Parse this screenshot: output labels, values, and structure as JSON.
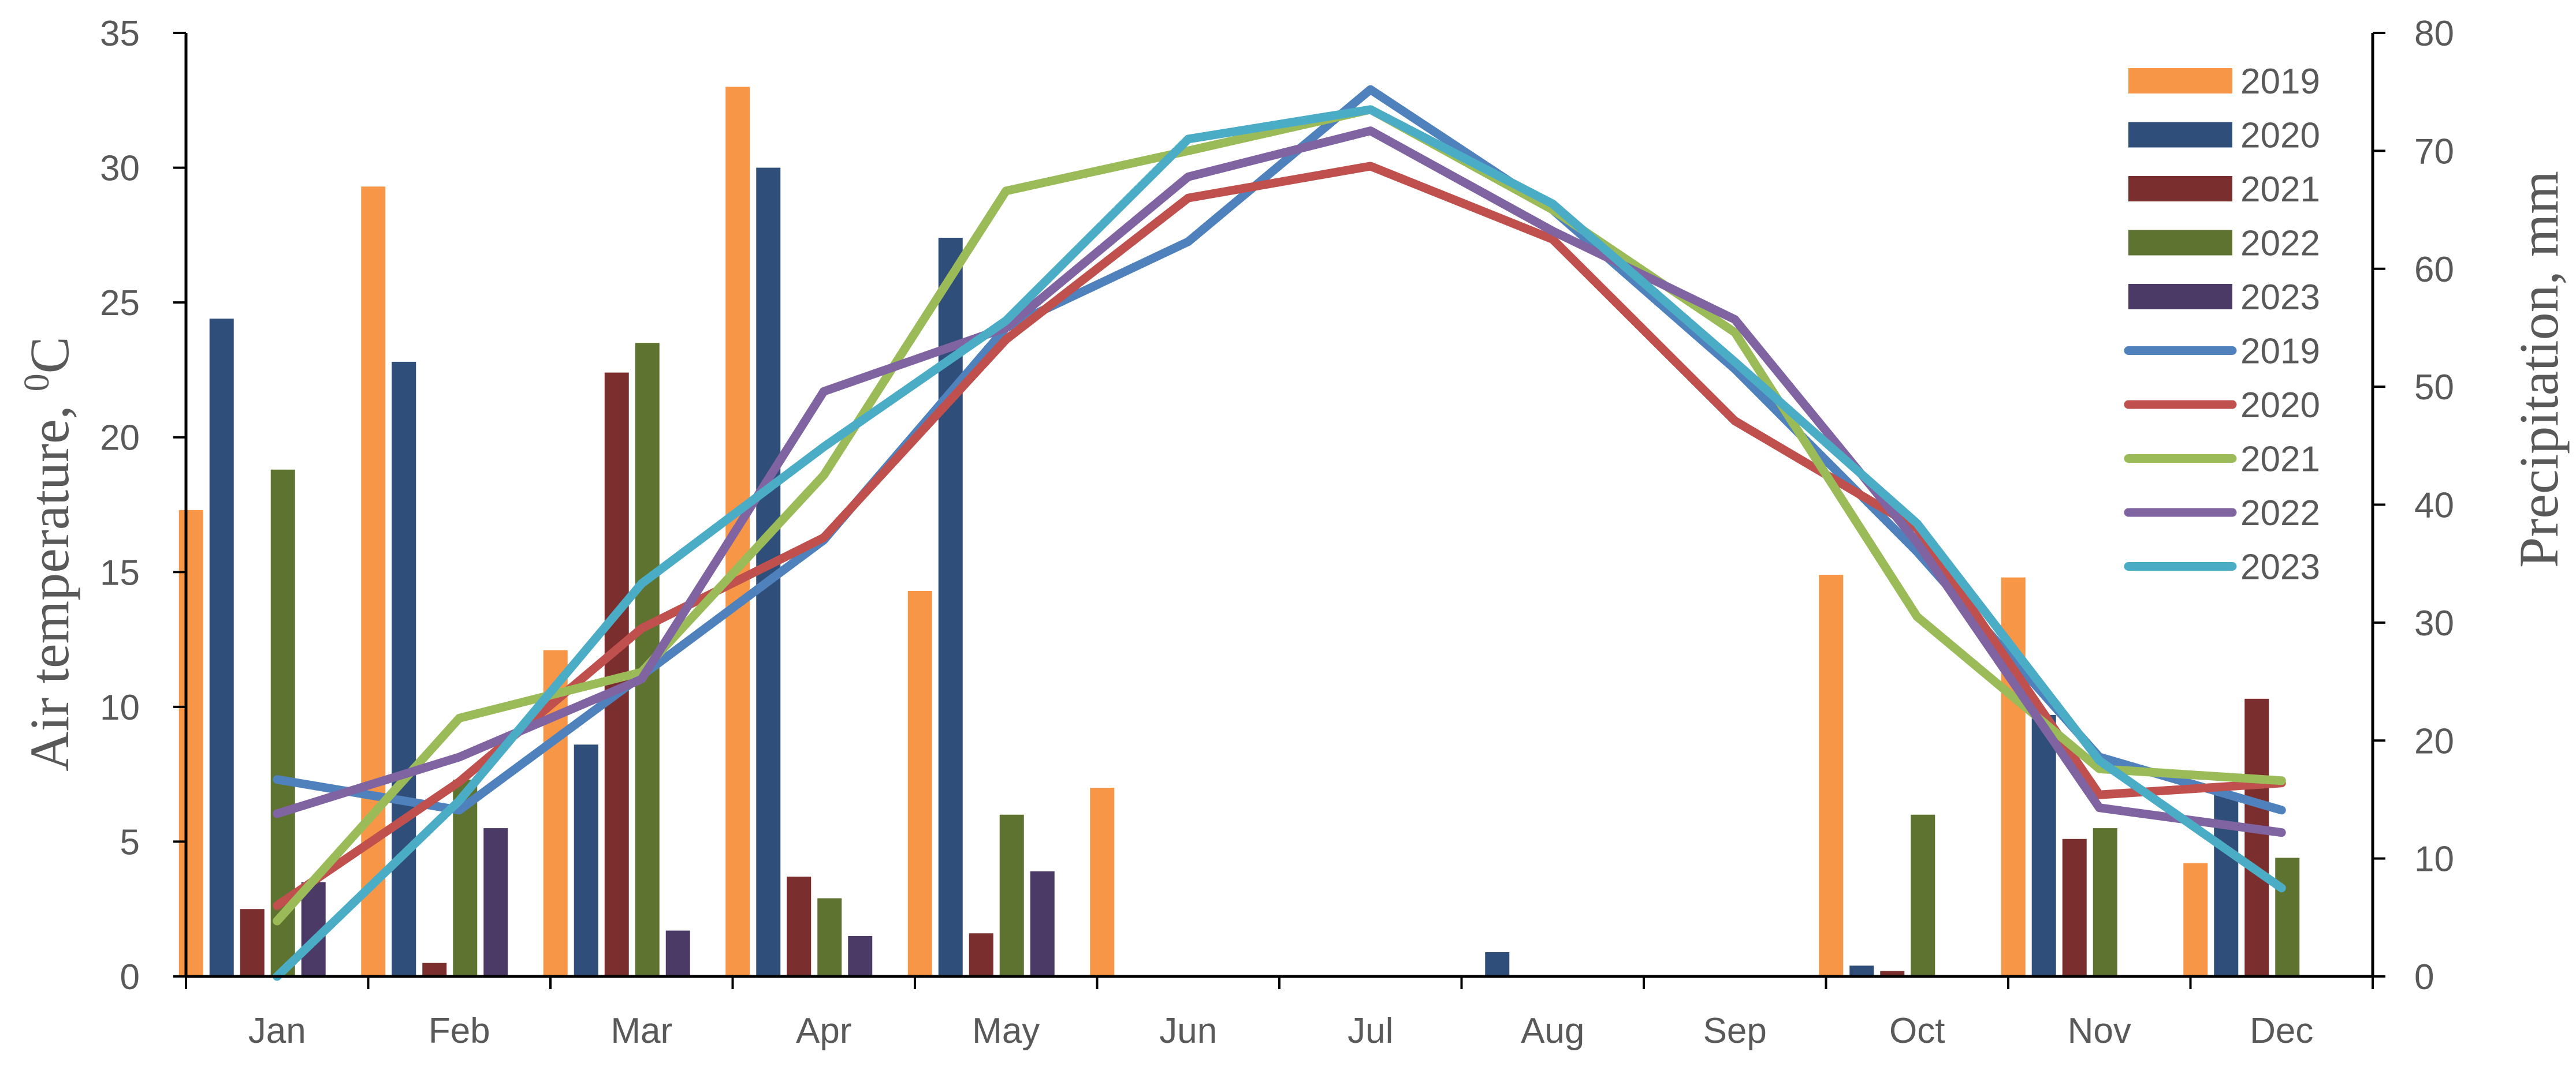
{
  "chart_data": {
    "type": "bar",
    "combo": "bar-line",
    "categories": [
      "Jan",
      "Feb",
      "Mar",
      "Apr",
      "May",
      "Jun",
      "Jul",
      "Aug",
      "Sep",
      "Oct",
      "Nov",
      "Dec"
    ],
    "xlabel": "",
    "ylabel": "Air temperature, ",
    "ylabel_superscript": "0",
    "ylabel_unit": "C",
    "y2label": "Precipitation, mm",
    "ylim": [
      0,
      35
    ],
    "yticks": [
      0,
      5,
      10,
      15,
      20,
      25,
      30,
      35
    ],
    "y2lim": [
      0,
      80
    ],
    "y2ticks": [
      0,
      10,
      20,
      30,
      40,
      50,
      60,
      70,
      80
    ],
    "grid": false,
    "legend_position": "top-right",
    "bar_series": [
      {
        "name": "2019",
        "color": "#F79646",
        "values": [
          17.3,
          29.3,
          12.1,
          33.0,
          14.3,
          7.0,
          0,
          0,
          0,
          14.9,
          14.8,
          4.2
        ]
      },
      {
        "name": "2020",
        "color": "#2F4E79",
        "values": [
          24.4,
          22.8,
          8.6,
          30.0,
          27.4,
          0,
          0,
          0.9,
          0,
          0.4,
          9.7,
          6.8
        ]
      },
      {
        "name": "2021",
        "color": "#7B2E2E",
        "values": [
          2.5,
          0.5,
          22.4,
          3.7,
          1.6,
          0,
          0,
          0,
          0,
          0.2,
          5.1,
          10.3
        ]
      },
      {
        "name": "2022",
        "color": "#5E732F",
        "values": [
          18.8,
          7.3,
          23.5,
          2.9,
          6.0,
          0,
          0,
          0,
          0,
          6.0,
          5.5,
          4.4
        ]
      },
      {
        "name": "2023",
        "color": "#4B3A66",
        "values": [
          3.5,
          5.5,
          1.7,
          1.5,
          3.9,
          0,
          0,
          0,
          0,
          0,
          0,
          0
        ]
      }
    ],
    "line_series": [
      {
        "name": "2019",
        "color": "#4F81BD",
        "values": [
          16.7,
          14.1,
          25.5,
          37.0,
          55.0,
          62.3,
          75.2,
          65.0,
          51.5,
          36.0,
          18.6,
          14.1
        ]
      },
      {
        "name": "2020",
        "color": "#C0504D",
        "values": [
          6.0,
          16.5,
          29.5,
          37.2,
          54.0,
          66.0,
          68.7,
          62.5,
          47.1,
          38.0,
          15.4,
          16.4
        ]
      },
      {
        "name": "2021",
        "color": "#9BBB59",
        "values": [
          4.7,
          21.9,
          25.8,
          42.5,
          66.6,
          70.0,
          73.5,
          65.0,
          54.6,
          30.5,
          17.6,
          16.6
        ]
      },
      {
        "name": "2022",
        "color": "#8064A2",
        "values": [
          13.8,
          18.6,
          25.2,
          49.6,
          55.0,
          67.8,
          71.7,
          63.2,
          55.7,
          36.8,
          14.3,
          12.2
        ]
      },
      {
        "name": "2023",
        "color": "#4BACC6",
        "values": [
          0.0,
          14.9,
          33.3,
          44.9,
          55.6,
          71.0,
          73.5,
          65.5,
          52.1,
          38.4,
          18.3,
          7.5
        ]
      }
    ]
  }
}
